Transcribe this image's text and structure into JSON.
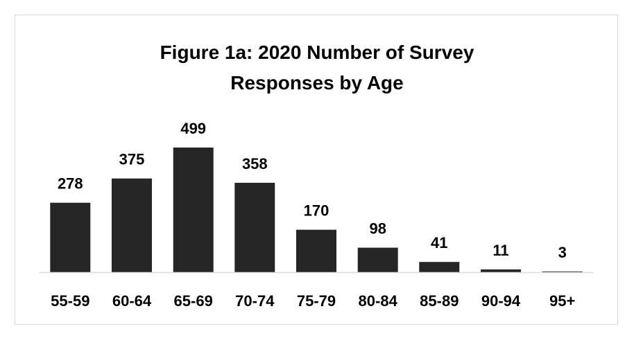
{
  "chart_data": {
    "type": "bar",
    "title_line1": "Figure 1a: 2020 Number of Survey",
    "title_line2": "Responses by Age",
    "categories": [
      "55-59",
      "60-64",
      "65-69",
      "70-74",
      "75-79",
      "80-84",
      "85-89",
      "90-94",
      "95+"
    ],
    "values": [
      278,
      375,
      499,
      358,
      170,
      98,
      41,
      11,
      3
    ],
    "data_labels": [
      "278",
      "375",
      "499",
      "358",
      "170",
      "98",
      "41",
      "11",
      "3"
    ],
    "xlabel": "",
    "ylabel": "",
    "ylim": [
      0,
      499
    ],
    "grid": false,
    "legend": "none",
    "bar_color": "#262626",
    "axis_color": "#d9d9d9"
  }
}
